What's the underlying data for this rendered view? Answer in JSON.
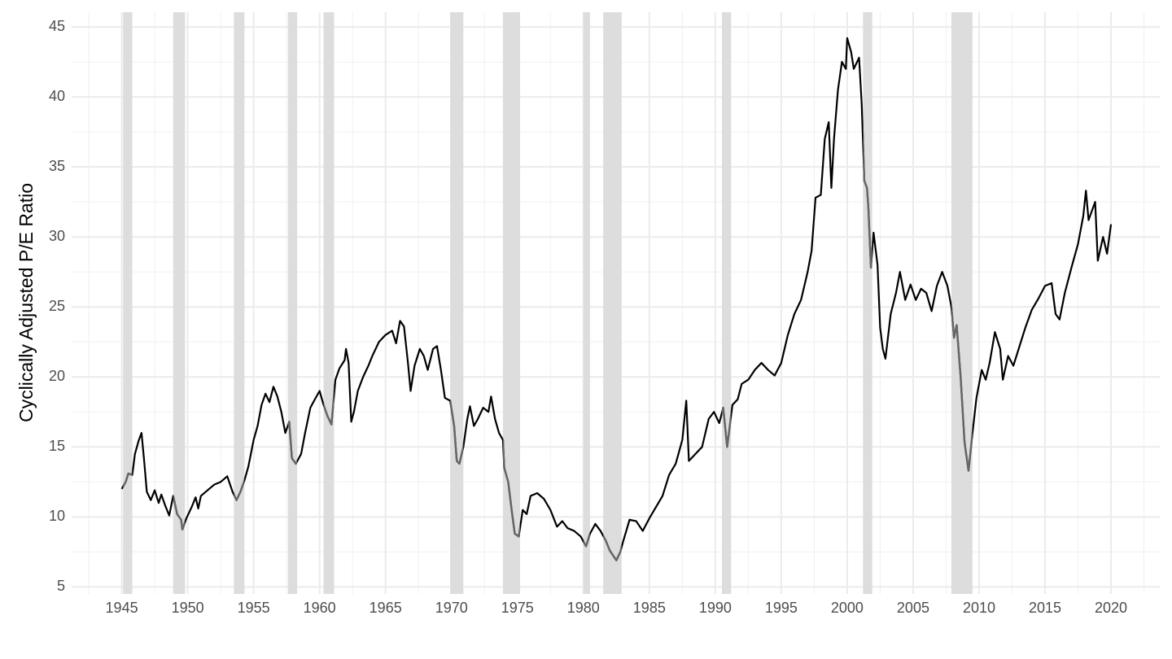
{
  "chart_data": {
    "type": "line",
    "y_label": "Cyclically Adjusted P/E Ratio",
    "x": [
      1945.0,
      1945.3,
      1945.5,
      1945.8,
      1946.0,
      1946.3,
      1946.5,
      1946.7,
      1946.9,
      1947.2,
      1947.5,
      1947.8,
      1948.0,
      1948.3,
      1948.6,
      1948.9,
      1949.2,
      1949.5,
      1949.6,
      1949.9,
      1950.3,
      1950.6,
      1950.8,
      1951.0,
      1951.5,
      1952.0,
      1952.5,
      1953.0,
      1953.4,
      1953.7,
      1954.0,
      1954.3,
      1954.6,
      1955.0,
      1955.3,
      1955.6,
      1955.9,
      1956.2,
      1956.5,
      1956.8,
      1957.1,
      1957.4,
      1957.7,
      1957.9,
      1958.2,
      1958.6,
      1958.9,
      1959.3,
      1959.7,
      1960.0,
      1960.3,
      1960.6,
      1960.9,
      1961.2,
      1961.5,
      1961.9,
      1962.0,
      1962.2,
      1962.4,
      1962.6,
      1962.9,
      1963.3,
      1963.7,
      1964.0,
      1964.5,
      1965.0,
      1965.5,
      1965.8,
      1966.1,
      1966.4,
      1966.7,
      1966.9,
      1967.2,
      1967.6,
      1967.9,
      1968.2,
      1968.6,
      1968.9,
      1969.2,
      1969.5,
      1969.9,
      1970.2,
      1970.4,
      1970.6,
      1970.9,
      1971.2,
      1971.4,
      1971.7,
      1972.0,
      1972.4,
      1972.8,
      1973.0,
      1973.3,
      1973.6,
      1973.9,
      1974.0,
      1974.3,
      1974.6,
      1974.8,
      1975.1,
      1975.4,
      1975.7,
      1976.0,
      1976.5,
      1977.0,
      1977.5,
      1978.0,
      1978.4,
      1978.8,
      1979.3,
      1979.8,
      1980.2,
      1980.5,
      1980.9,
      1981.3,
      1981.7,
      1982.0,
      1982.5,
      1982.8,
      1983.0,
      1983.5,
      1984.0,
      1984.5,
      1985.0,
      1985.5,
      1986.0,
      1986.5,
      1987.0,
      1987.5,
      1987.8,
      1988.0,
      1988.5,
      1989.0,
      1989.5,
      1989.9,
      1990.3,
      1990.6,
      1990.9,
      1991.3,
      1991.7,
      1992.0,
      1992.5,
      1993.0,
      1993.5,
      1994.0,
      1994.5,
      1995.0,
      1995.5,
      1996.0,
      1996.5,
      1997.0,
      1997.3,
      1997.6,
      1998.0,
      1998.3,
      1998.6,
      1998.8,
      1999.0,
      1999.3,
      1999.6,
      1999.9,
      2000.0,
      2000.3,
      2000.5,
      2000.9,
      2001.1,
      2001.3,
      2001.5,
      2001.6,
      2001.8,
      2002.0,
      2002.3,
      2002.5,
      2002.7,
      2002.9,
      2003.3,
      2003.7,
      2004.0,
      2004.4,
      2004.8,
      2005.2,
      2005.6,
      2006.0,
      2006.4,
      2006.8,
      2007.2,
      2007.6,
      2007.9,
      2008.1,
      2008.3,
      2008.6,
      2008.9,
      2009.2,
      2009.5,
      2009.8,
      2010.2,
      2010.5,
      2010.8,
      2011.2,
      2011.6,
      2011.8,
      2012.2,
      2012.6,
      2013.0,
      2013.5,
      2014.0,
      2014.5,
      2015.0,
      2015.5,
      2015.8,
      2016.1,
      2016.5,
      2017.0,
      2017.5,
      2017.9,
      2018.1,
      2018.3,
      2018.8,
      2019.0,
      2019.4,
      2019.7,
      2020.0
    ],
    "series": [
      {
        "color": "#000000",
        "values": [
          12.0,
          12.5,
          13.1,
          13.0,
          14.5,
          15.5,
          16.0,
          14.0,
          11.8,
          11.2,
          11.9,
          11.0,
          11.6,
          10.8,
          10.1,
          11.5,
          10.2,
          9.8,
          9.1,
          9.9,
          10.7,
          11.4,
          10.6,
          11.5,
          11.9,
          12.3,
          12.5,
          12.9,
          11.8,
          11.2,
          11.8,
          12.6,
          13.6,
          15.5,
          16.5,
          18.0,
          18.8,
          18.2,
          19.3,
          18.6,
          17.5,
          16.0,
          16.8,
          14.2,
          13.8,
          14.5,
          16.0,
          17.8,
          18.5,
          19.0,
          18.0,
          17.2,
          16.6,
          19.8,
          20.6,
          21.2,
          22.0,
          21.0,
          16.8,
          17.5,
          19.0,
          20.0,
          20.8,
          21.5,
          22.5,
          23.0,
          23.3,
          22.4,
          24.0,
          23.6,
          21.0,
          19.0,
          20.8,
          22.0,
          21.5,
          20.5,
          22.0,
          22.2,
          20.5,
          18.5,
          18.3,
          16.5,
          14.0,
          13.8,
          15.0,
          17.0,
          17.9,
          16.5,
          17.0,
          17.8,
          17.5,
          18.6,
          17.0,
          16.0,
          15.5,
          13.5,
          12.5,
          10.2,
          8.8,
          8.6,
          10.5,
          10.2,
          11.5,
          11.7,
          11.3,
          10.5,
          9.3,
          9.7,
          9.2,
          9.0,
          8.6,
          7.9,
          8.8,
          9.5,
          9.0,
          8.3,
          7.6,
          6.9,
          7.5,
          8.2,
          9.8,
          9.7,
          9.0,
          9.9,
          10.7,
          11.5,
          13.0,
          13.8,
          15.5,
          18.3,
          14.0,
          14.5,
          15.0,
          17.0,
          17.5,
          16.7,
          17.8,
          15.0,
          18.0,
          18.4,
          19.5,
          19.8,
          20.5,
          21.0,
          20.5,
          20.1,
          21.0,
          23.0,
          24.5,
          25.5,
          27.5,
          29.0,
          32.8,
          33.0,
          37.0,
          38.2,
          33.5,
          37.0,
          40.5,
          42.5,
          42.0,
          44.2,
          43.2,
          42.0,
          42.8,
          39.5,
          34.0,
          33.5,
          32.2,
          27.8,
          30.3,
          28.0,
          23.5,
          22.0,
          21.3,
          24.5,
          26.0,
          27.5,
          25.5,
          26.6,
          25.5,
          26.3,
          26.0,
          24.7,
          26.5,
          27.5,
          26.5,
          25.0,
          22.8,
          23.7,
          20.0,
          15.3,
          13.3,
          16.0,
          18.5,
          20.5,
          19.8,
          21.0,
          23.2,
          22.0,
          19.8,
          21.5,
          20.8,
          22.0,
          23.5,
          24.8,
          25.6,
          26.5,
          26.7,
          24.5,
          24.1,
          26.0,
          27.8,
          29.5,
          31.5,
          33.3,
          31.2,
          32.5,
          28.3,
          30.0,
          28.8,
          30.9
        ]
      }
    ],
    "recession_line_color": "#666666",
    "recession_color": "#dddddd",
    "recessions": [
      [
        1945.1,
        1945.8
      ],
      [
        1948.9,
        1949.8
      ],
      [
        1953.5,
        1954.3
      ],
      [
        1957.6,
        1958.3
      ],
      [
        1960.3,
        1961.1
      ],
      [
        1969.9,
        1970.9
      ],
      [
        1973.9,
        1975.2
      ],
      [
        1980.0,
        1980.5
      ],
      [
        1981.5,
        1982.9
      ],
      [
        1990.5,
        1991.2
      ],
      [
        2001.2,
        2001.9
      ],
      [
        2007.9,
        2009.5
      ]
    ],
    "xlim": [
      1941.2,
      2023.7
    ],
    "ylim": [
      4.5,
      46.05
    ],
    "xticks": [
      1945,
      1950,
      1955,
      1960,
      1965,
      1970,
      1975,
      1980,
      1985,
      1990,
      1995,
      2000,
      2005,
      2010,
      2015,
      2020
    ],
    "yticks": [
      5,
      10,
      15,
      20,
      25,
      30,
      35,
      40,
      45
    ],
    "x_minor_grid": [
      1942.5,
      1947.5,
      1952.5,
      1957.5,
      1962.5,
      1967.5,
      1972.5,
      1977.5,
      1982.5,
      1987.5,
      1992.5,
      1997.5,
      2002.5,
      2007.5,
      2012.5,
      2017.5,
      2022.5
    ],
    "y_minor_grid": [
      7.5,
      12.5,
      17.5,
      22.5,
      27.5,
      32.5,
      37.5,
      42.5
    ],
    "grid": true
  }
}
